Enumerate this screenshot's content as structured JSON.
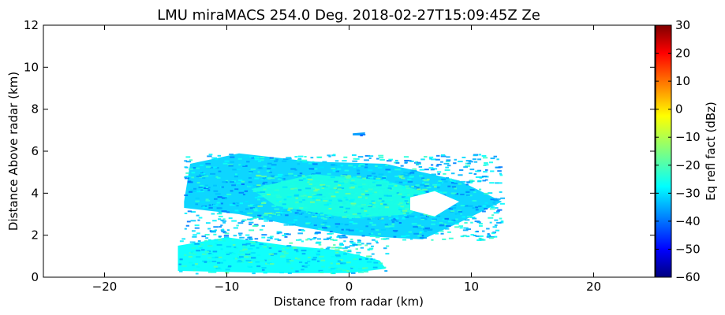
{
  "chart_data": {
    "type": "heatmap",
    "title": "LMU miraMACS 254.0 Deg. 2018-02-27T15:09:45Z  Ze",
    "xlabel": "Distance from radar (km)",
    "ylabel": "Distance Above radar  (km)",
    "xlim": [
      -25,
      25
    ],
    "ylim": [
      0,
      12
    ],
    "xticks": [
      -20,
      -10,
      0,
      10,
      20
    ],
    "xtick_labels": [
      "−20",
      "−10",
      "0",
      "10",
      "20"
    ],
    "yticks": [
      0,
      2,
      4,
      6,
      8,
      10,
      12
    ],
    "ytick_labels": [
      "0",
      "2",
      "4",
      "6",
      "8",
      "10",
      "12"
    ],
    "grid": false,
    "colormap": "jet",
    "colorbar": {
      "label": "Eq refl fact (dBz)",
      "vmin": -60,
      "vmax": 30,
      "ticks": [
        30,
        20,
        10,
        0,
        -10,
        -20,
        -30,
        -40,
        -50,
        -60
      ],
      "tick_labels": [
        "30",
        "20",
        "10",
        "0",
        "−10",
        "−20",
        "−30",
        "−40",
        "−50",
        "−60"
      ]
    },
    "echo_regions": [
      {
        "name": "main cloud layer",
        "polygon": [
          [
            -13.5,
            3.6
          ],
          [
            -13,
            5.4
          ],
          [
            -9,
            5.9
          ],
          [
            -3,
            5.5
          ],
          [
            3,
            5.4
          ],
          [
            9,
            4.6
          ],
          [
            12.5,
            3.6
          ],
          [
            9,
            2.6
          ],
          [
            6,
            1.8
          ],
          [
            0,
            2.0
          ],
          [
            -4,
            2.4
          ],
          [
            -9,
            3.0
          ],
          [
            -13.5,
            3.3
          ]
        ],
        "dbz": -30
      },
      {
        "name": "core",
        "polygon": [
          [
            -8,
            4.2
          ],
          [
            -3,
            4.9
          ],
          [
            3,
            4.6
          ],
          [
            7,
            3.9
          ],
          [
            5,
            3.0
          ],
          [
            0,
            2.8
          ],
          [
            -6,
            3.4
          ]
        ],
        "dbz": -24
      },
      {
        "name": "clear gap",
        "polygon": [
          [
            5,
            3.8
          ],
          [
            7,
            4.1
          ],
          [
            9,
            3.6
          ],
          [
            7,
            2.9
          ],
          [
            5,
            3.2
          ]
        ],
        "dbz": null
      },
      {
        "name": "low level echo",
        "polygon": [
          [
            -14,
            1.5
          ],
          [
            -10,
            1.9
          ],
          [
            -5,
            1.5
          ],
          [
            -1,
            1.3
          ],
          [
            2.5,
            0.8
          ],
          [
            3,
            0.4
          ],
          [
            0,
            0.2
          ],
          [
            -6,
            0.2
          ],
          [
            -14,
            0.3
          ]
        ],
        "dbz": -26
      },
      {
        "name": "small cell",
        "polygon": [
          [
            0.3,
            6.85
          ],
          [
            1.3,
            6.9
          ],
          [
            1.3,
            6.75
          ],
          [
            0.3,
            6.75
          ]
        ],
        "dbz": -35
      }
    ]
  }
}
